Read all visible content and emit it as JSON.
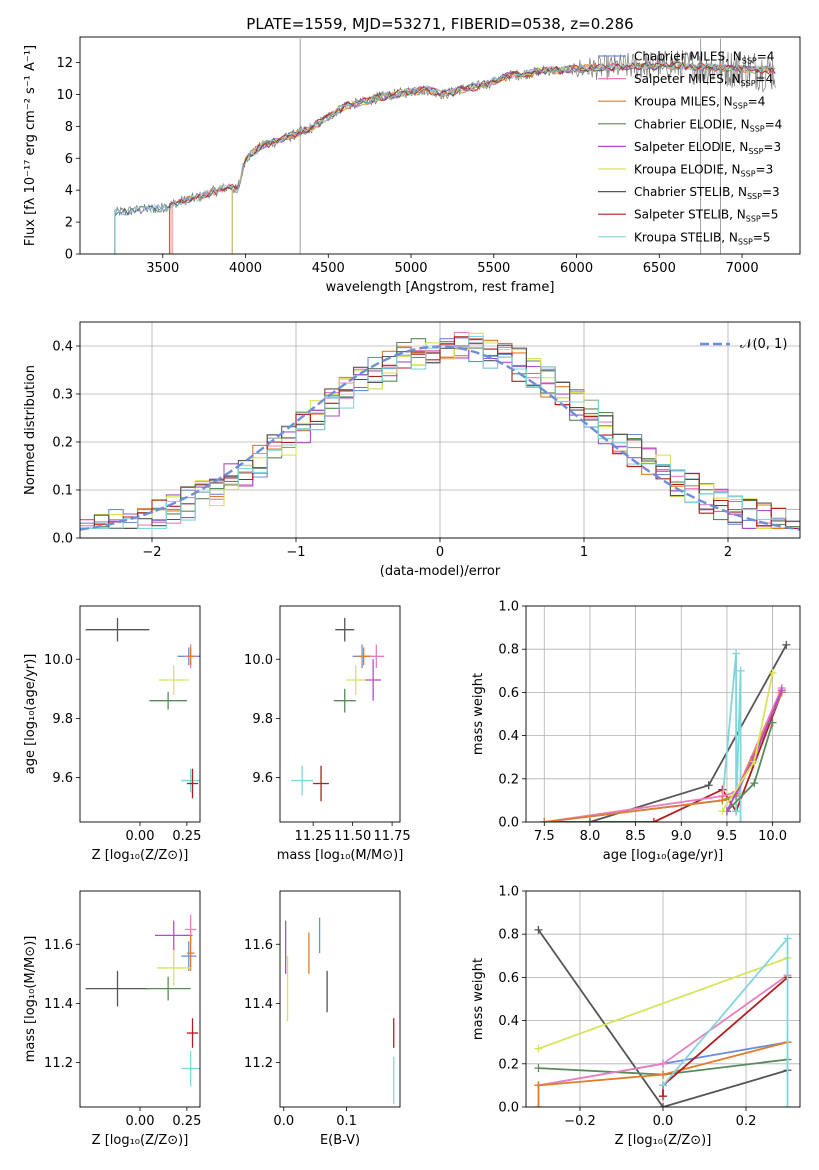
{
  "colors": {
    "chabrier_miles": "#6d8fd9",
    "salpeter_miles": "#e97fc0",
    "kroupa_miles": "#e47b29",
    "chabrier_elodie": "#5a8a5a",
    "salpeter_elodie": "#b04ec9",
    "kroupa_elodie": "#d9e35a",
    "chabrier_stelib": "#555555",
    "salpeter_stelib": "#b11e1e",
    "kroupa_stelib": "#82d6db",
    "gauss": "#6d8fd9",
    "data_spec": "#777777"
  },
  "chart_data": [
    {
      "id": "spectrum",
      "type": "line",
      "title": "PLATE=1559, MJD=53271, FIBERID=0538, z=0.286",
      "xlabel": "wavelength [Angstrom, rest frame]",
      "ylabel": "Flux [fλ 10⁻¹⁷ erg cm⁻² s⁻¹ A⁻¹]",
      "xlim": [
        3000,
        7350
      ],
      "ylim": [
        0,
        13.6
      ],
      "xticks": [
        3500,
        4000,
        4500,
        5000,
        5500,
        6000,
        6500,
        7000
      ],
      "yticks": [
        0,
        2,
        4,
        6,
        8,
        10,
        12
      ],
      "continuum": {
        "x": [
          3210,
          3300,
          3400,
          3500,
          3600,
          3700,
          3800,
          3900,
          3950,
          4000,
          4100,
          4200,
          4300,
          4400,
          4500,
          4600,
          4700,
          4800,
          4900,
          5000,
          5100,
          5200,
          5300,
          5400,
          5500,
          5600,
          5700,
          5800,
          5900,
          6000,
          6200,
          6400,
          6600,
          6800,
          7000,
          7200
        ],
        "y": [
          2.6,
          2.7,
          2.8,
          2.9,
          3.3,
          3.5,
          3.9,
          4.2,
          4.0,
          6.0,
          6.8,
          7.1,
          7.5,
          7.9,
          8.6,
          9.3,
          9.5,
          9.8,
          10.0,
          10.2,
          10.3,
          10.0,
          10.3,
          10.5,
          10.8,
          11.2,
          11.3,
          11.5,
          11.5,
          11.6,
          11.7,
          11.8,
          11.8,
          11.7,
          11.6,
          11.5
        ]
      },
      "legend_placement": "right",
      "legend": [
        {
          "label": "Chabrier MILES, N",
          "sub": "SSP",
          "suffix": "=4",
          "color_key": "chabrier_miles"
        },
        {
          "label": "Salpeter MILES, N",
          "sub": "SSP",
          "suffix": "=4",
          "color_key": "salpeter_miles"
        },
        {
          "label": "Kroupa MILES, N",
          "sub": "SSP",
          "suffix": "=4",
          "color_key": "kroupa_miles"
        },
        {
          "label": "Chabrier ELODIE, N",
          "sub": "SSP",
          "suffix": "=4",
          "color_key": "chabrier_elodie"
        },
        {
          "label": "Salpeter ELODIE, N",
          "sub": "SSP",
          "suffix": "=3",
          "color_key": "salpeter_elodie"
        },
        {
          "label": "Kroupa ELODIE, N",
          "sub": "SSP",
          "suffix": "=3",
          "color_key": "kroupa_elodie"
        },
        {
          "label": "Chabrier STELIB, N",
          "sub": "SSP",
          "suffix": "=3",
          "color_key": "chabrier_stelib"
        },
        {
          "label": "Salpeter STELIB, N",
          "sub": "SSP",
          "suffix": "=5",
          "color_key": "salpeter_stelib"
        },
        {
          "label": "Kroupa STELIB, N",
          "sub": "SSP",
          "suffix": "=5",
          "color_key": "kroupa_stelib"
        }
      ]
    },
    {
      "id": "residuals",
      "type": "line",
      "title": "",
      "xlabel": "(data-model)/error",
      "ylabel": "Normed distribution",
      "xlim": [
        -2.5,
        2.5
      ],
      "ylim": [
        0,
        0.45
      ],
      "xticks": [
        -2,
        -1,
        0,
        1,
        2
      ],
      "yticks": [
        0.0,
        0.1,
        0.2,
        0.3,
        0.4
      ],
      "ytick_labels": [
        "0.0",
        "0.1",
        "0.2",
        "0.3",
        "0.4"
      ],
      "xtick_labels": [
        "−2",
        "−1",
        "0",
        "1",
        "2"
      ],
      "grid": true,
      "legend_label": "𝒩(0, 1)",
      "legend_placement": "top-right",
      "bin_width": 0.1
    },
    {
      "id": "age_vs_Z",
      "type": "scatter",
      "xlabel": "Z [log₁₀(Z/Z⊙)]",
      "ylabel": "age  [log₁₀(age/yr)]",
      "xlim": [
        -0.32,
        0.32
      ],
      "ylim": [
        9.45,
        10.18
      ],
      "xticks": [
        0.0,
        0.25
      ],
      "xtick_labels": [
        "0.00",
        "0.25"
      ],
      "yticks": [
        9.6,
        9.8,
        10.0
      ],
      "ytick_labels": [
        "9.6",
        "9.8",
        "10.0"
      ],
      "points": [
        {
          "s": "chabrier_stelib",
          "x": -0.12,
          "y": 10.1,
          "xe": 0.17,
          "ye": 0.04
        },
        {
          "s": "chabrier_miles",
          "x": 0.26,
          "y": 10.01,
          "xe": 0.06,
          "ye": 0.03
        },
        {
          "s": "salpeter_miles",
          "x": 0.27,
          "y": 10.01,
          "xe": 0.03,
          "ye": 0.04
        },
        {
          "s": "kroupa_miles",
          "x": 0.27,
          "y": 10.01,
          "xe": 0.02,
          "ye": 0.03
        },
        {
          "s": "kroupa_elodie",
          "x": 0.18,
          "y": 9.93,
          "xe": 0.08,
          "ye": 0.05
        },
        {
          "s": "chabrier_elodie",
          "x": 0.15,
          "y": 9.86,
          "xe": 0.1,
          "ye": 0.03
        },
        {
          "s": "kroupa_stelib",
          "x": 0.27,
          "y": 9.59,
          "xe": 0.05,
          "ye": 0.04
        },
        {
          "s": "salpeter_stelib",
          "x": 0.28,
          "y": 9.58,
          "xe": 0.03,
          "ye": 0.05
        }
      ]
    },
    {
      "id": "age_vs_mass",
      "type": "scatter",
      "xlabel": "mass [log₁₀(M/M⊙)]",
      "ylabel": "",
      "xlim": [
        11.04,
        11.8
      ],
      "ylim": [
        9.45,
        10.18
      ],
      "xticks": [
        11.25,
        11.5,
        11.75
      ],
      "xtick_labels": [
        "11.25",
        "11.50",
        "11.75"
      ],
      "yticks": [
        9.6,
        9.8,
        10.0
      ],
      "ytick_labels": [
        "9.6",
        "9.8",
        "10.0"
      ],
      "points": [
        {
          "s": "chabrier_stelib",
          "x": 11.45,
          "y": 10.1,
          "xe": 0.06,
          "ye": 0.04
        },
        {
          "s": "chabrier_miles",
          "x": 11.56,
          "y": 10.01,
          "xe": 0.06,
          "ye": 0.04
        },
        {
          "s": "salpeter_miles",
          "x": 11.65,
          "y": 10.01,
          "xe": 0.05,
          "ye": 0.04
        },
        {
          "s": "kroupa_miles",
          "x": 11.57,
          "y": 10.01,
          "xe": 0.04,
          "ye": 0.03
        },
        {
          "s": "salpeter_elodie",
          "x": 11.63,
          "y": 9.93,
          "xe": 0.05,
          "ye": 0.07
        },
        {
          "s": "kroupa_elodie",
          "x": 11.52,
          "y": 9.93,
          "xe": 0.06,
          "ye": 0.05
        },
        {
          "s": "chabrier_elodie",
          "x": 11.45,
          "y": 9.86,
          "xe": 0.07,
          "ye": 0.04
        },
        {
          "s": "salpeter_stelib",
          "x": 11.3,
          "y": 9.58,
          "xe": 0.05,
          "ye": 0.06
        },
        {
          "s": "kroupa_stelib",
          "x": 11.18,
          "y": 9.59,
          "xe": 0.07,
          "ye": 0.05
        }
      ]
    },
    {
      "id": "massweight_vs_age",
      "type": "line",
      "xlabel": "age  [log₁₀(age/yr)]",
      "ylabel": "mass weight",
      "xlim": [
        7.3,
        10.3
      ],
      "ylim": [
        0,
        1.0
      ],
      "xticks": [
        7.5,
        8.0,
        8.5,
        9.0,
        9.5,
        10.0
      ],
      "xtick_labels": [
        "7.5",
        "8.0",
        "8.5",
        "9.0",
        "9.5",
        "10.0"
      ],
      "yticks": [
        0.0,
        0.2,
        0.4,
        0.6,
        0.8,
        1.0
      ],
      "ytick_labels": [
        "0.0",
        "0.2",
        "0.4",
        "0.6",
        "0.8",
        "1.0"
      ],
      "grid": true,
      "series": [
        {
          "s": "chabrier_stelib",
          "x": [
            8.0,
            9.3,
            10.15
          ],
          "y": [
            0.0,
            0.17,
            0.82
          ]
        },
        {
          "s": "salpeter_stelib",
          "x": [
            7.5,
            8.7,
            9.45,
            9.6,
            10.1
          ],
          "y": [
            0.0,
            0.0,
            0.15,
            0.05,
            0.6
          ]
        },
        {
          "s": "kroupa_stelib",
          "x": [
            7.5,
            9.45,
            9.6,
            9.6,
            9.65,
            9.65
          ],
          "y": [
            0.0,
            0.1,
            0.78,
            0.05,
            0.7,
            0.0
          ]
        },
        {
          "s": "chabrier_miles",
          "x": [
            7.5,
            9.45,
            9.6,
            10.1
          ],
          "y": [
            0.0,
            0.1,
            0.12,
            0.6
          ]
        },
        {
          "s": "salpeter_miles",
          "x": [
            7.5,
            9.45,
            9.6,
            10.1
          ],
          "y": [
            0.0,
            0.12,
            0.14,
            0.62
          ]
        },
        {
          "s": "kroupa_miles",
          "x": [
            7.5,
            9.45,
            9.6,
            10.1
          ],
          "y": [
            0.0,
            0.1,
            0.13,
            0.6
          ]
        },
        {
          "s": "chabrier_elodie",
          "x": [
            9.5,
            9.8,
            10.0
          ],
          "y": [
            0.05,
            0.18,
            0.46
          ]
        },
        {
          "s": "salpeter_elodie",
          "x": [
            9.5,
            9.8,
            10.1
          ],
          "y": [
            0.05,
            0.3,
            0.61
          ]
        },
        {
          "s": "kroupa_elodie",
          "x": [
            9.45,
            9.8,
            10.0
          ],
          "y": [
            0.05,
            0.28,
            0.69
          ]
        }
      ]
    },
    {
      "id": "mass_vs_Z",
      "type": "scatter",
      "xlabel": "Z [log₁₀(Z/Z⊙)]",
      "ylabel": "mass [log₁₀(M/M⊙)]",
      "xlim": [
        -0.32,
        0.32
      ],
      "ylim": [
        11.05,
        11.78
      ],
      "xticks": [
        0.0,
        0.25
      ],
      "xtick_labels": [
        "0.00",
        "0.25"
      ],
      "yticks": [
        11.2,
        11.4,
        11.6
      ],
      "ytick_labels": [
        "11.2",
        "11.4",
        "11.6"
      ],
      "points": [
        {
          "s": "chabrier_stelib",
          "x": -0.12,
          "y": 11.45,
          "xe": 0.17,
          "ye": 0.06
        },
        {
          "s": "salpeter_elodie",
          "x": 0.18,
          "y": 11.63,
          "xe": 0.1,
          "ye": 0.05
        },
        {
          "s": "salpeter_miles",
          "x": 0.27,
          "y": 11.65,
          "xe": 0.03,
          "ye": 0.05
        },
        {
          "s": "chabrier_miles",
          "x": 0.26,
          "y": 11.56,
          "xe": 0.04,
          "ye": 0.05
        },
        {
          "s": "kroupa_miles",
          "x": 0.27,
          "y": 11.57,
          "xe": 0.02,
          "ye": 0.06
        },
        {
          "s": "kroupa_elodie",
          "x": 0.18,
          "y": 11.52,
          "xe": 0.09,
          "ye": 0.06
        },
        {
          "s": "chabrier_elodie",
          "x": 0.15,
          "y": 11.45,
          "xe": 0.12,
          "ye": 0.04
        },
        {
          "s": "salpeter_stelib",
          "x": 0.28,
          "y": 11.3,
          "xe": 0.03,
          "ye": 0.05
        },
        {
          "s": "kroupa_stelib",
          "x": 0.27,
          "y": 11.18,
          "xe": 0.05,
          "ye": 0.06
        }
      ]
    },
    {
      "id": "mass_vs_ebv",
      "type": "scatter",
      "xlabel": "E(B-V)",
      "ylabel": "",
      "xlim": [
        -0.006,
        0.185
      ],
      "ylim": [
        11.05,
        11.78
      ],
      "xticks": [
        0.0,
        0.1
      ],
      "xtick_labels": [
        "0.0",
        "0.1"
      ],
      "yticks": [
        11.2,
        11.4,
        11.6
      ],
      "ytick_labels": [
        "11.2",
        "11.4",
        "11.6"
      ],
      "points": [
        {
          "s": "salpeter_elodie",
          "x": 0.003,
          "y": 11.59,
          "xe": 0.0,
          "ye": 0.09
        },
        {
          "s": "kroupa_elodie",
          "x": 0.006,
          "y": 11.45,
          "xe": 0.0,
          "ye": 0.11
        },
        {
          "s": "kroupa_miles",
          "x": 0.04,
          "y": 11.57,
          "xe": 0.0,
          "ye": 0.07
        },
        {
          "s": "chabrier_miles",
          "x": 0.057,
          "y": 11.63,
          "xe": 0.0,
          "ye": 0.06
        },
        {
          "s": "chabrier_stelib",
          "x": 0.069,
          "y": 11.44,
          "xe": 0.0,
          "ye": 0.07
        },
        {
          "s": "salpeter_stelib",
          "x": 0.175,
          "y": 11.3,
          "xe": 0.0,
          "ye": 0.05
        },
        {
          "s": "kroupa_stelib",
          "x": 0.175,
          "y": 11.14,
          "xe": 0.0,
          "ye": 0.08
        }
      ]
    },
    {
      "id": "massweight_vs_Z",
      "type": "line",
      "xlabel": "Z [log₁₀(Z/Z⊙)]",
      "ylabel": "mass weight",
      "xlim": [
        -0.33,
        0.33
      ],
      "ylim": [
        0,
        1.0
      ],
      "xticks": [
        -0.2,
        0.0,
        0.2
      ],
      "xtick_labels": [
        "−0.2",
        "0.0",
        "0.2"
      ],
      "yticks": [
        0.0,
        0.2,
        0.4,
        0.6,
        0.8,
        1.0
      ],
      "ytick_labels": [
        "0.0",
        "0.2",
        "0.4",
        "0.6",
        "0.8",
        "1.0"
      ],
      "grid": true,
      "series": [
        {
          "s": "chabrier_stelib",
          "x": [
            -0.3,
            0.0,
            0.3
          ],
          "y": [
            0.82,
            0.0,
            0.17
          ]
        },
        {
          "s": "chabrier_elodie",
          "x": [
            -0.3,
            0.0,
            0.3
          ],
          "y": [
            0.18,
            0.15,
            0.22
          ]
        },
        {
          "s": "kroupa_elodie",
          "x": [
            -0.3,
            0.3
          ],
          "y": [
            0.27,
            0.69
          ]
        },
        {
          "s": "chabrier_miles",
          "x": [
            -0.3,
            0.0,
            0.3
          ],
          "y": [
            0.1,
            0.2,
            0.3
          ]
        },
        {
          "s": "salpeter_miles",
          "x": [
            -0.3,
            0.0,
            0.3
          ],
          "y": [
            0.1,
            0.2,
            0.61
          ]
        },
        {
          "s": "kroupa_miles",
          "x": [
            -0.3,
            -0.3,
            0.0,
            0.3
          ],
          "y": [
            0.0,
            0.1,
            0.15,
            0.3
          ]
        },
        {
          "s": "salpeter_stelib",
          "x": [
            0.0,
            0.0,
            0.3
          ],
          "y": [
            0.05,
            0.1,
            0.6
          ]
        },
        {
          "s": "kroupa_stelib",
          "x": [
            0.0,
            0.3,
            0.3
          ],
          "y": [
            0.1,
            0.78,
            0.0
          ]
        }
      ]
    }
  ]
}
